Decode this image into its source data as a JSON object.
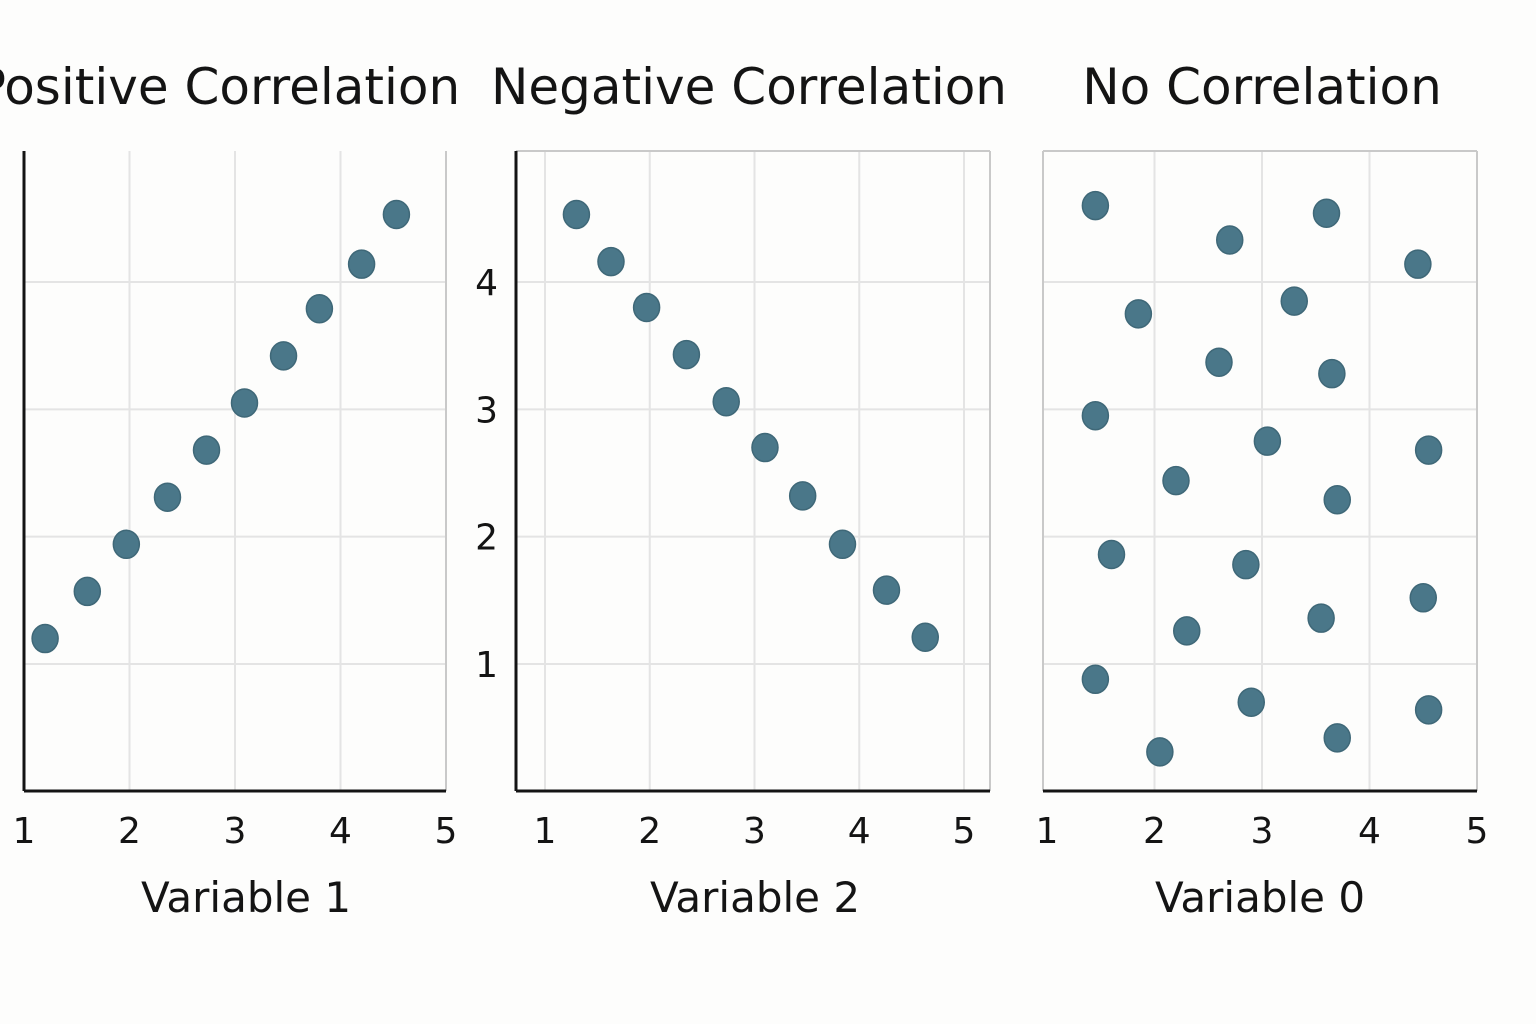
{
  "colors": {
    "point": "#4a7789",
    "point_edge": "#3f6878",
    "axis": "#141414",
    "grid": "#e4e4e4",
    "frame": "#c9c9c9",
    "background": "#fdfdfc"
  },
  "chart_data": [
    {
      "type": "scatter",
      "title": "Positive Correlation",
      "xlabel": "Variable 1",
      "ylabel": "",
      "xlim": [
        1,
        5
      ],
      "ylim": [
        0,
        5
      ],
      "xticks": [
        1,
        2,
        3,
        4,
        5
      ],
      "yticks": [],
      "grid": true,
      "x": [
        1.2,
        1.6,
        1.97,
        2.36,
        2.73,
        3.09,
        3.46,
        3.8,
        4.2,
        4.53
      ],
      "y": [
        1.2,
        1.57,
        1.94,
        2.31,
        2.68,
        3.05,
        3.42,
        3.79,
        4.14,
        4.53
      ]
    },
    {
      "type": "scatter",
      "title": "Negative Correlation",
      "xlabel": "Variable 2",
      "ylabel": "",
      "xlim": [
        0.7,
        5.2
      ],
      "ylim": [
        0,
        5
      ],
      "xticks": [
        1,
        2,
        3,
        4,
        5
      ],
      "yticks": [
        1,
        2,
        3,
        4
      ],
      "grid": true,
      "x": [
        1.3,
        1.63,
        1.97,
        2.35,
        2.73,
        3.1,
        3.46,
        3.84,
        4.26,
        4.63
      ],
      "y": [
        4.53,
        4.16,
        3.8,
        3.43,
        3.06,
        2.7,
        2.32,
        1.94,
        1.58,
        1.21
      ]
    },
    {
      "type": "scatter",
      "title": "No Correlation",
      "xlabel": "Variable 0",
      "ylabel": "",
      "xlim": [
        1,
        5.2
      ],
      "ylim": [
        0,
        5
      ],
      "xticks": [
        1,
        2,
        3,
        4,
        5
      ],
      "yticks": [],
      "grid": true,
      "x": [
        1.45,
        2.7,
        3.6,
        1.85,
        3.3,
        4.45,
        2.6,
        1.45,
        3.65,
        2.2,
        3.05,
        4.55,
        1.6,
        2.85,
        3.7,
        2.3,
        3.55,
        4.5,
        1.45,
        2.9,
        2.05,
        3.7,
        4.55
      ],
      "y": [
        4.6,
        4.33,
        4.54,
        3.75,
        3.85,
        4.14,
        3.37,
        2.95,
        3.28,
        2.44,
        2.75,
        2.68,
        1.86,
        1.78,
        2.29,
        1.26,
        1.36,
        1.52,
        0.88,
        0.7,
        0.31,
        0.42,
        0.64
      ]
    }
  ]
}
